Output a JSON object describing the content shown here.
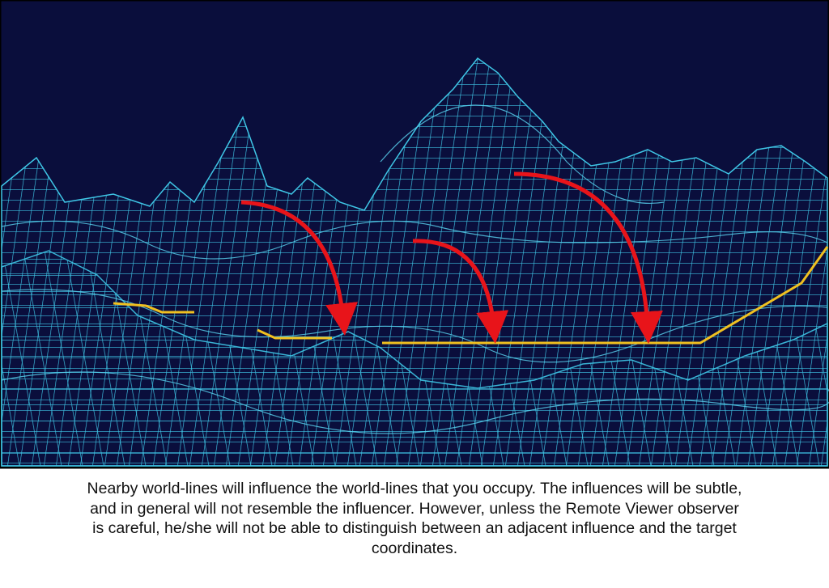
{
  "caption": {
    "lines": [
      "Nearby world-lines will influence the world-lines that you occupy. The influences will be subtle,",
      "and in general will not resemble the influencer. However, unless the Remote Viewer observer",
      "is careful, he/she will not be able to distinguish between an adjacent influence and the target",
      "coordinates."
    ]
  }
}
